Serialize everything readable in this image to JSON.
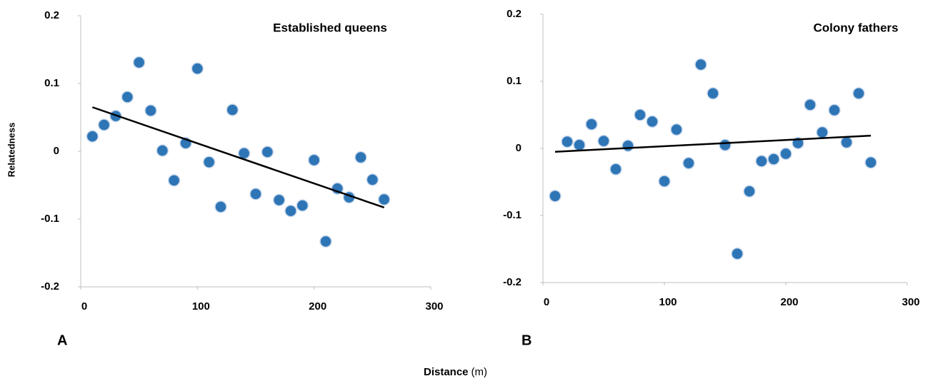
{
  "chart_data": [
    {
      "type": "scatter",
      "title": "Established queens",
      "panel": "A",
      "x": [
        10,
        20,
        30,
        40,
        50,
        60,
        70,
        80,
        90,
        100,
        110,
        120,
        130,
        140,
        150,
        160,
        170,
        180,
        190,
        200,
        210,
        220,
        230,
        240,
        250,
        260
      ],
      "series": [
        {
          "color": "#2e75b6",
          "values": [
            0.022,
            0.039,
            0.052,
            0.08,
            0.131,
            0.06,
            0.001,
            -0.043,
            0.012,
            0.122,
            -0.016,
            -0.082,
            0.061,
            -0.003,
            -0.063,
            -0.001,
            -0.072,
            -0.088,
            -0.08,
            -0.013,
            -0.133,
            -0.055,
            -0.068,
            -0.009,
            -0.042,
            -0.071
          ]
        }
      ],
      "trendline": {
        "x": [
          10,
          260
        ],
        "y": [
          0.065,
          -0.083
        ],
        "color": "#000000"
      },
      "xlim": [
        0,
        300
      ],
      "xticks": [
        0,
        100,
        200,
        300
      ],
      "ylim": [
        -0.2,
        0.2
      ],
      "yticks": [
        0.2,
        0.1,
        0,
        -0.1,
        -0.2
      ]
    },
    {
      "type": "scatter",
      "title": "Colony fathers",
      "panel": "B",
      "x": [
        10,
        20,
        30,
        40,
        50,
        60,
        70,
        80,
        90,
        100,
        110,
        120,
        130,
        140,
        150,
        160,
        170,
        180,
        190,
        200,
        210,
        220,
        230,
        240,
        250,
        260,
        270
      ],
      "series": [
        {
          "color": "#2e75b6",
          "values": [
            -0.071,
            0.01,
            0.005,
            0.036,
            0.011,
            -0.031,
            0.004,
            0.05,
            0.04,
            -0.049,
            0.028,
            -0.022,
            0.125,
            0.082,
            0.005,
            -0.157,
            -0.064,
            -0.019,
            -0.016,
            -0.008,
            0.008,
            0.065,
            0.024,
            0.057,
            0.009,
            0.082,
            -0.021
          ]
        }
      ],
      "trendline": {
        "x": [
          10,
          270
        ],
        "y": [
          -0.005,
          0.019
        ],
        "color": "#000000"
      },
      "xlim": [
        0,
        300
      ],
      "xticks": [
        0,
        100,
        200,
        300
      ],
      "ylim": [
        -0.2,
        0.2
      ],
      "yticks": [
        0.2,
        0.1,
        0,
        -0.1,
        -0.2
      ]
    }
  ],
  "shared": {
    "ylabel": "Relatedness",
    "xlabel": "Distance",
    "xlabel_unit": "(m)"
  }
}
